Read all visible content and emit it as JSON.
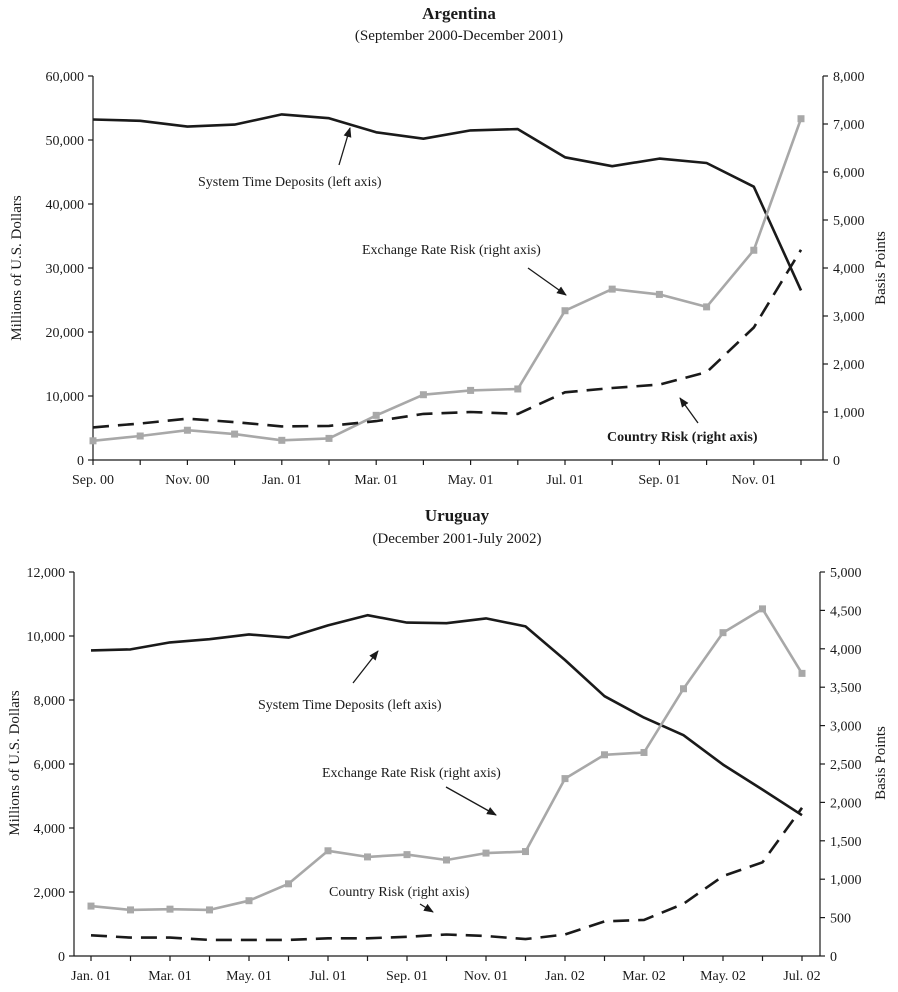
{
  "colors": {
    "deposits": "#1a1a1a",
    "exchange": "#a8a8a8",
    "country": "#1a1a1a",
    "axis": "#1a1a1a"
  },
  "chart_data": [
    {
      "type": "line",
      "title": "Argentina",
      "subtitle": "(September 2000-December 2001)",
      "ylabel": "Millions of U.S. Dollars",
      "y2label": "Basis Points",
      "ylim": [
        0,
        60000
      ],
      "y2lim": [
        0,
        8000
      ],
      "y_ticks": [
        0,
        10000,
        20000,
        30000,
        40000,
        50000,
        60000
      ],
      "y_tick_labels": [
        "0",
        "10,000",
        "20,000",
        "30,000",
        "40,000",
        "50,000",
        "60,000"
      ],
      "y2_ticks": [
        0,
        1000,
        2000,
        3000,
        4000,
        5000,
        6000,
        7000,
        8000
      ],
      "y2_tick_labels": [
        "0",
        "1,000",
        "2,000",
        "3,000",
        "4,000",
        "5,000",
        "6,000",
        "7,000",
        "8,000"
      ],
      "x_count": 16,
      "x_tick_labels": [
        "Sep. 00",
        "Nov. 00",
        "Jan. 01",
        "Mar. 01",
        "May. 01",
        "Jul. 01",
        "Sep. 01",
        "Nov. 01"
      ],
      "x_tick_label_index": [
        0,
        2,
        4,
        6,
        8,
        10,
        12,
        14
      ],
      "series": [
        {
          "name": "System Time Deposits (left axis)",
          "axis": "left",
          "style": "solid",
          "values": [
            53200,
            53000,
            52100,
            52400,
            54000,
            53400,
            51200,
            50200,
            51500,
            51700,
            47300,
            45900,
            47100,
            46400,
            42700,
            26500
          ]
        },
        {
          "name": "Exchange Rate Risk (right axis)",
          "axis": "right",
          "style": "markers",
          "values": [
            400,
            500,
            620,
            540,
            410,
            450,
            930,
            1360,
            1450,
            1480,
            3110,
            3560,
            3450,
            3190,
            4370,
            7110
          ]
        },
        {
          "name": "Country Risk (right axis)",
          "axis": "right",
          "style": "dashed",
          "values": [
            680,
            760,
            860,
            790,
            700,
            710,
            810,
            960,
            1000,
            960,
            1410,
            1500,
            1570,
            1830,
            2760,
            4380
          ]
        }
      ],
      "annotations": [
        {
          "text": "System Time Deposits (left axis)",
          "bold": false
        },
        {
          "text": "Exchange Rate Risk (right axis)",
          "bold": false
        },
        {
          "text": "Country Risk (right axis)",
          "bold": true
        }
      ]
    },
    {
      "type": "line",
      "title": "Uruguay",
      "subtitle": "(December 2001-July 2002)",
      "ylabel": "Millions of U.S. Dollars",
      "y2label": "Basis Points",
      "ylim": [
        0,
        12000
      ],
      "y2lim": [
        0,
        5000
      ],
      "y_ticks": [
        0,
        2000,
        4000,
        6000,
        8000,
        10000,
        12000
      ],
      "y_tick_labels": [
        "0",
        "2,000",
        "4,000",
        "6,000",
        "8,000",
        "10,000",
        "12,000"
      ],
      "y2_ticks": [
        0,
        500,
        1000,
        1500,
        2000,
        2500,
        3000,
        3500,
        4000,
        4500,
        5000
      ],
      "y2_tick_labels": [
        "0",
        "500",
        "1,000",
        "1,500",
        "2,000",
        "2,500",
        "3,000",
        "3,500",
        "4,000",
        "4,500",
        "5,000"
      ],
      "x_count": 19,
      "x_tick_labels": [
        "Jan. 01",
        "Mar. 01",
        "May. 01",
        "Jul. 01",
        "Sep. 01",
        "Nov. 01",
        "Jan. 02",
        "Mar. 02",
        "May. 02",
        "Jul. 02"
      ],
      "x_tick_label_index": [
        0,
        2,
        4,
        6,
        8,
        10,
        12,
        14,
        16,
        18
      ],
      "series": [
        {
          "name": "System Time Deposits (left axis)",
          "axis": "left",
          "style": "solid",
          "values": [
            9550,
            9580,
            9800,
            9900,
            10050,
            9950,
            10330,
            10650,
            10420,
            10400,
            10550,
            10300,
            9250,
            8120,
            7450,
            6900,
            5980,
            5200,
            4400
          ]
        },
        {
          "name": "Exchange Rate Risk (right axis)",
          "axis": "right",
          "style": "markers",
          "values": [
            650,
            600,
            610,
            600,
            720,
            940,
            1370,
            1290,
            1320,
            1250,
            1340,
            1360,
            2310,
            2620,
            2650,
            3480,
            4210,
            4520,
            3680
          ]
        },
        {
          "name": "Country Risk (right axis)",
          "axis": "right",
          "style": "dashed",
          "values": [
            270,
            240,
            240,
            210,
            210,
            210,
            230,
            230,
            250,
            280,
            260,
            220,
            280,
            450,
            470,
            680,
            1040,
            1220,
            1930
          ]
        }
      ],
      "annotations": [
        {
          "text": "System Time Deposits (left axis)",
          "bold": false
        },
        {
          "text": "Exchange Rate Risk (right axis)",
          "bold": false
        },
        {
          "text": "Country Risk (right axis)",
          "bold": false
        }
      ]
    }
  ]
}
